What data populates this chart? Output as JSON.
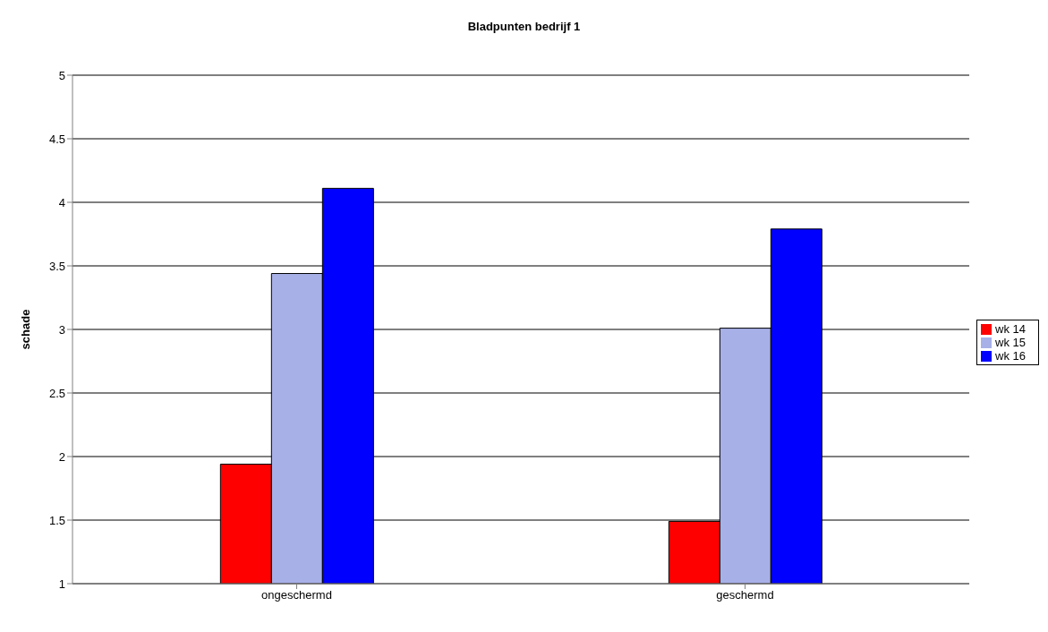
{
  "chart_data": {
    "type": "bar",
    "title": "Bladpunten bedrijf 1",
    "ylabel": "schade",
    "categories": [
      "ongeschermd",
      "geschermd"
    ],
    "series": [
      {
        "name": "wk 14",
        "color": "#ff0000",
        "values": [
          1.94,
          1.49
        ]
      },
      {
        "name": "wk 15",
        "color": "#a8b0e8",
        "values": [
          3.44,
          3.01
        ]
      },
      {
        "name": "wk 16",
        "color": "#0000ff",
        "values": [
          4.11,
          3.79
        ]
      }
    ],
    "ylim": [
      1,
      5
    ],
    "yticks": [
      1,
      1.5,
      2,
      2.5,
      3,
      3.5,
      4,
      4.5,
      5
    ],
    "grid": "y",
    "legend": "right"
  }
}
